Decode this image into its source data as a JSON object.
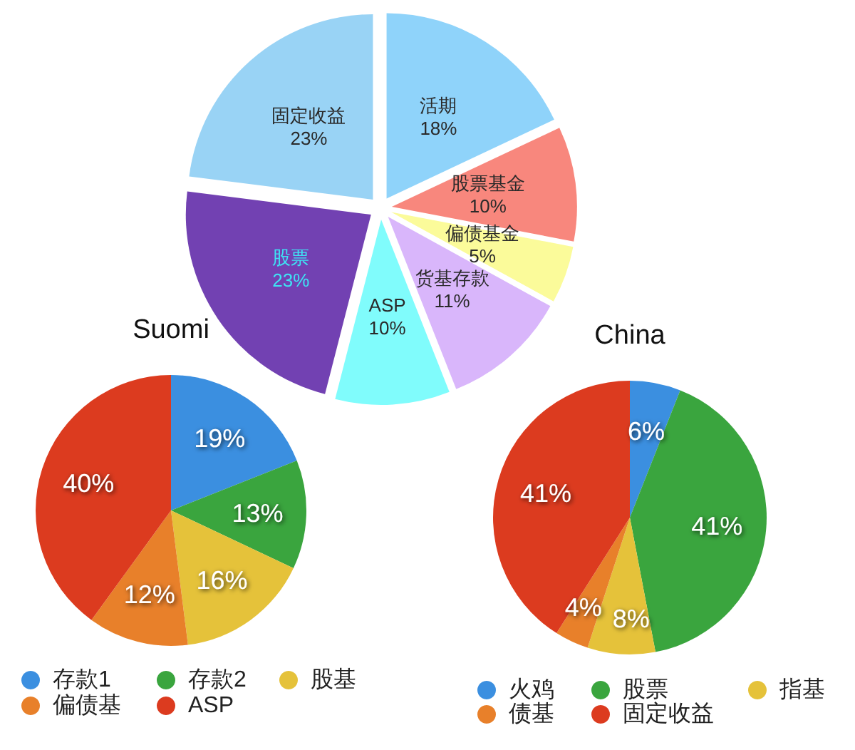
{
  "chart_data": [
    {
      "type": "pie",
      "categories": [
        "活期",
        "股票基金",
        "偏债基金",
        "货基存款",
        "ASP",
        "股票",
        "固定收益"
      ],
      "values": [
        18,
        10,
        5,
        11,
        10,
        23,
        23
      ],
      "value_labels": [
        "18%",
        "10%",
        "5%",
        "11%",
        "10%",
        "23%",
        "23%"
      ],
      "colors": [
        "#8fd3fa",
        "#f8877d",
        "#fbfb9a",
        "#d9b6fb",
        "#80fcfc",
        "#7241b2",
        "#99d3f5"
      ],
      "legend": false
    },
    {
      "type": "pie",
      "title": "Suomi",
      "categories": [
        "存款1",
        "存款2",
        "股基",
        "偏债基",
        "ASP"
      ],
      "values": [
        19,
        13,
        16,
        12,
        40
      ],
      "value_labels": [
        "19%",
        "13%",
        "16%",
        "12%",
        "40%"
      ],
      "colors": [
        "#3b8fe0",
        "#3aa53e",
        "#e5c23a",
        "#e8802a",
        "#dc3b1f"
      ],
      "legend": "bottom"
    },
    {
      "type": "pie",
      "title": "China",
      "categories": [
        "火鸡",
        "股票",
        "指基",
        "债基",
        "固定收益"
      ],
      "values": [
        6,
        41,
        8,
        4,
        41
      ],
      "value_labels": [
        "6%",
        "41%",
        "8%",
        "4%",
        "41%"
      ],
      "colors": [
        "#3b8fe0",
        "#3aa53e",
        "#e5c23a",
        "#e8802a",
        "#dc3b1f"
      ],
      "legend": "bottom"
    }
  ]
}
